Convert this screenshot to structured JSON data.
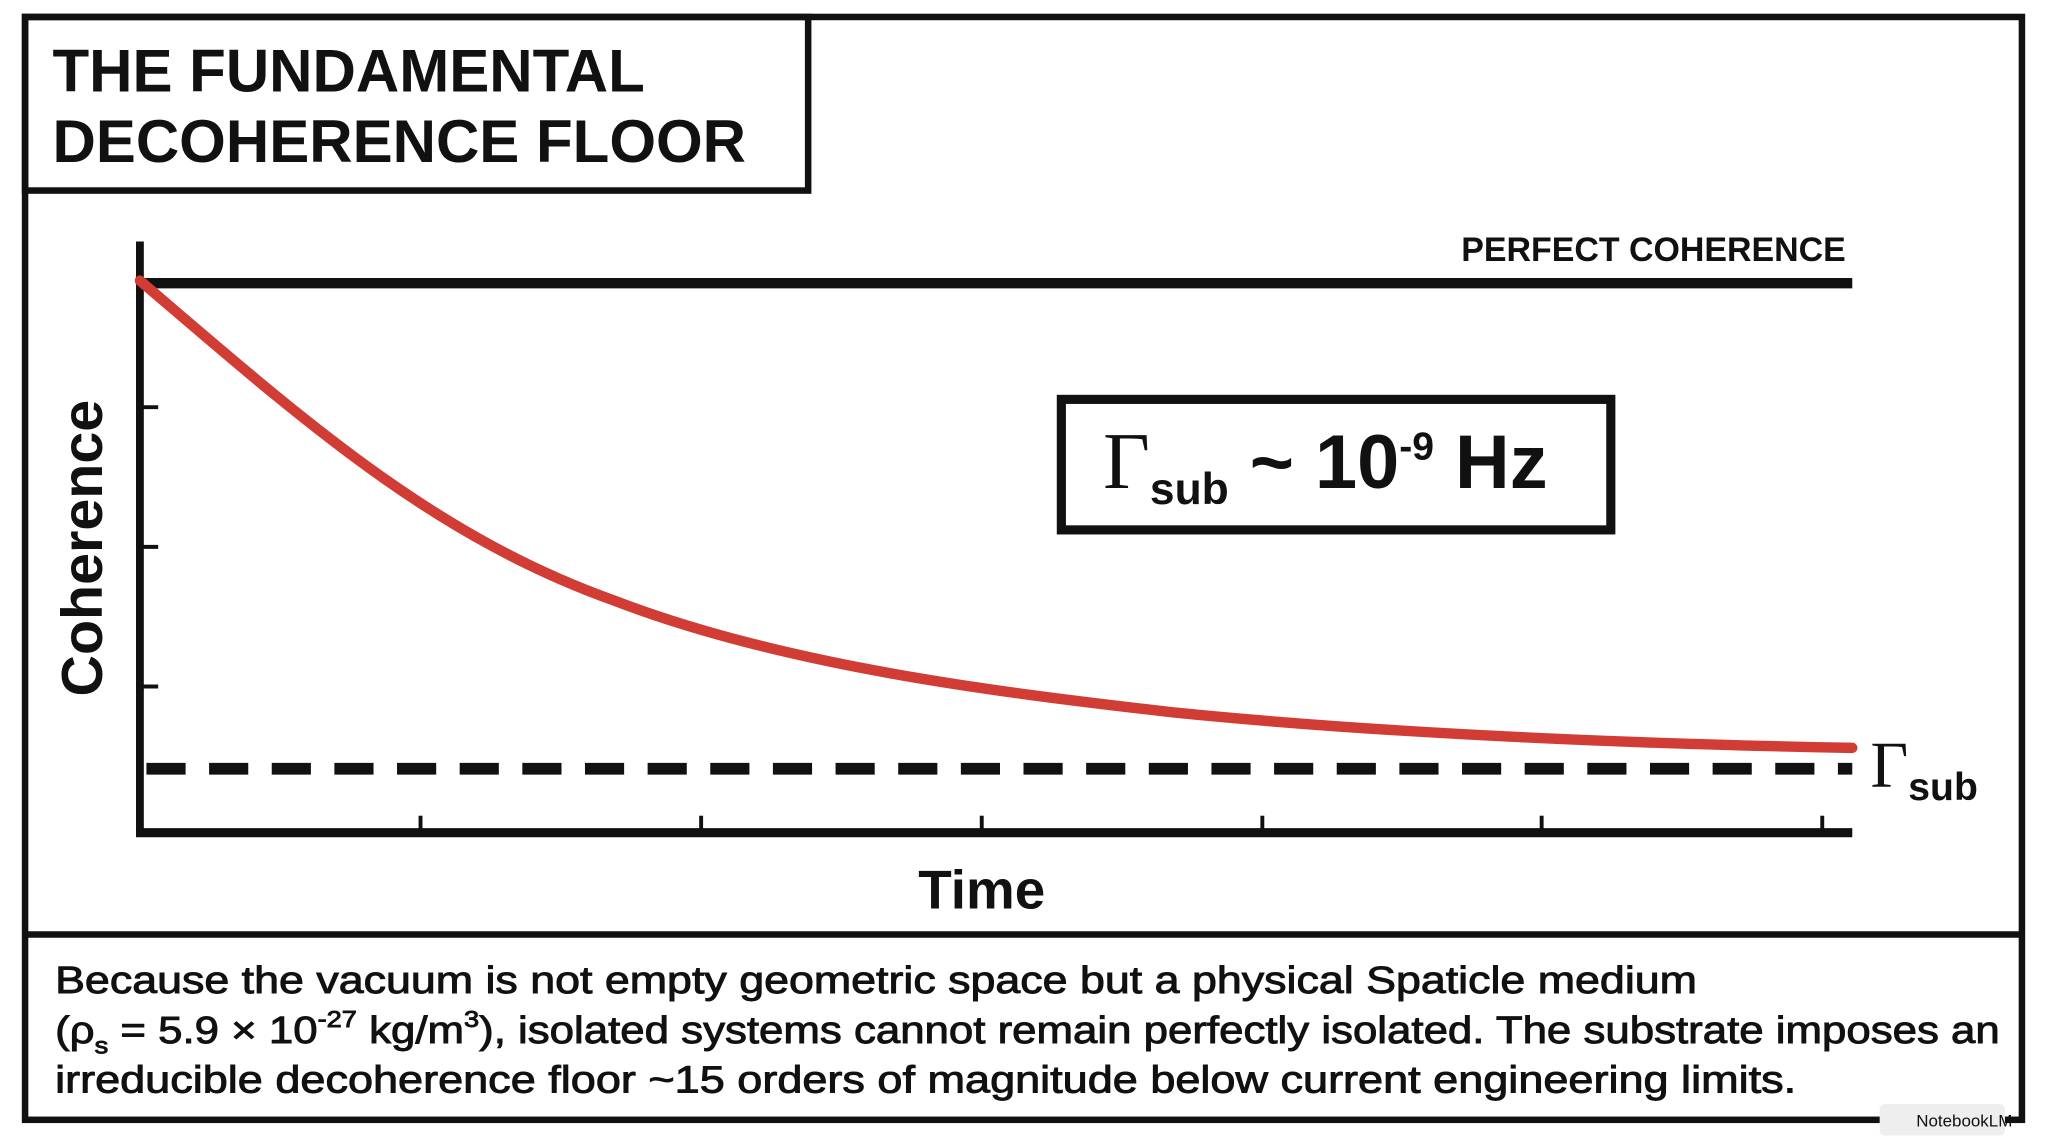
{
  "title": [
    "THE FUNDAMENTAL",
    "DECOHERENCE FLOOR"
  ],
  "chart": {
    "y_label": "Coherence",
    "x_label": "Time",
    "top_label": "PERFECT COHERENCE",
    "formula": {
      "symbol": "Γ",
      "sub": "sub",
      "mid": " ~ 10",
      "sup": "-9",
      "unit": " Hz"
    },
    "floor_label": {
      "symbol": "Γ",
      "sub": "sub"
    }
  },
  "caption": {
    "line1": "Because the vacuum is not empty geometric space but a physical Spaticle medium",
    "line2": [
      "(ρ",
      "s",
      " = 5.9 × 10",
      "-27",
      " kg/m",
      "3",
      "), isolated systems cannot remain perfectly isolated. The substrate imposes an"
    ],
    "line3": "irreducible decoherence floor ~15 orders of magnitude below current engineering limits."
  },
  "watermark": "NotebookLM"
}
